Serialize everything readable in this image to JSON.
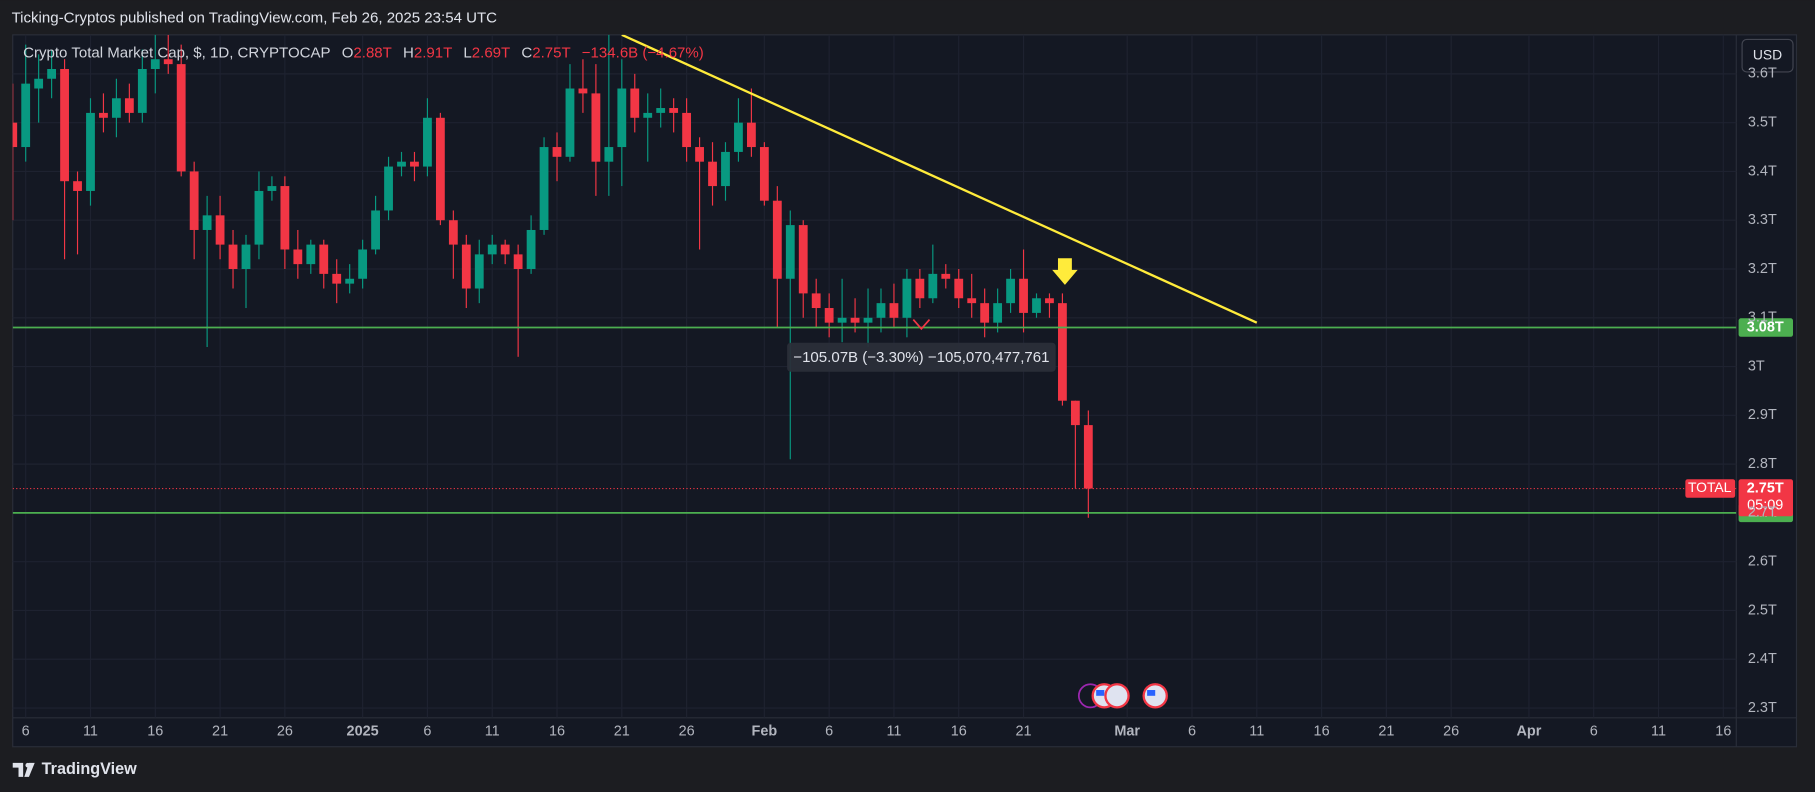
{
  "header": {
    "title": "Ticking-Cryptos published on TradingView.com, Feb 26, 2025 23:54 UTC"
  },
  "footer": {
    "brand": "TradingView"
  },
  "toolbar": {
    "currency": "USD"
  },
  "chart_data": {
    "type": "candlestick",
    "legend": {
      "title": "Crypto Total Market Cap, $, 1D, CRYPTOCAP",
      "o_key": "O",
      "o": "2.88T",
      "h_key": "H",
      "h": "2.91T",
      "l_key": "L",
      "l": "2.69T",
      "c_key": "C",
      "c": "2.75T",
      "change": "−134.6B (−4.67%)"
    },
    "x": [
      "2024-12-05",
      "2024-12-06",
      "2024-12-07",
      "2024-12-08",
      "2024-12-09",
      "2024-12-10",
      "2024-12-11",
      "2024-12-12",
      "2024-12-13",
      "2024-12-14",
      "2024-12-15",
      "2024-12-16",
      "2024-12-17",
      "2024-12-18",
      "2024-12-19",
      "2024-12-20",
      "2024-12-21",
      "2024-12-22",
      "2024-12-23",
      "2024-12-24",
      "2024-12-25",
      "2024-12-26",
      "2024-12-27",
      "2024-12-28",
      "2024-12-29",
      "2024-12-30",
      "2024-12-31",
      "2025-01-01",
      "2025-01-02",
      "2025-01-03",
      "2025-01-04",
      "2025-01-05",
      "2025-01-06",
      "2025-01-07",
      "2025-01-08",
      "2025-01-09",
      "2025-01-10",
      "2025-01-11",
      "2025-01-12",
      "2025-01-13",
      "2025-01-14",
      "2025-01-15",
      "2025-01-16",
      "2025-01-17",
      "2025-01-18",
      "2025-01-19",
      "2025-01-20",
      "2025-01-21",
      "2025-01-22",
      "2025-01-23",
      "2025-01-24",
      "2025-01-25",
      "2025-01-26",
      "2025-01-27",
      "2025-01-28",
      "2025-01-29",
      "2025-01-30",
      "2025-01-31",
      "2025-02-01",
      "2025-02-02",
      "2025-02-03",
      "2025-02-04",
      "2025-02-05",
      "2025-02-06",
      "2025-02-07",
      "2025-02-08",
      "2025-02-09",
      "2025-02-10",
      "2025-02-11",
      "2025-02-12",
      "2025-02-13",
      "2025-02-14",
      "2025-02-15",
      "2025-02-16",
      "2025-02-17",
      "2025-02-18",
      "2025-02-19",
      "2025-02-20",
      "2025-02-21",
      "2025-02-22",
      "2025-02-23",
      "2025-02-24",
      "2025-02-25",
      "2025-02-26"
    ],
    "open": [
      3.5,
      3.45,
      3.57,
      3.59,
      3.61,
      3.38,
      3.36,
      3.52,
      3.51,
      3.55,
      3.52,
      3.61,
      3.63,
      3.62,
      3.4,
      3.28,
      3.31,
      3.25,
      3.2,
      3.25,
      3.36,
      3.37,
      3.24,
      3.21,
      3.25,
      3.19,
      3.17,
      3.18,
      3.24,
      3.32,
      3.41,
      3.42,
      3.41,
      3.51,
      3.3,
      3.25,
      3.16,
      3.23,
      3.25,
      3.23,
      3.2,
      3.28,
      3.45,
      3.43,
      3.57,
      3.56,
      3.42,
      3.45,
      3.57,
      3.51,
      3.52,
      3.53,
      3.52,
      3.45,
      3.42,
      3.37,
      3.44,
      3.5,
      3.45,
      3.34,
      3.18,
      3.29,
      3.15,
      3.12,
      3.09,
      3.1,
      3.09,
      3.1,
      3.13,
      3.1,
      3.18,
      3.14,
      3.19,
      3.18,
      3.14,
      3.13,
      3.09,
      3.13,
      3.18,
      3.11,
      3.14,
      3.13,
      2.93,
      2.88
    ],
    "high": [
      3.58,
      3.66,
      3.64,
      3.65,
      3.63,
      3.4,
      3.55,
      3.56,
      3.59,
      3.58,
      3.65,
      3.7,
      3.68,
      3.66,
      3.42,
      3.35,
      3.35,
      3.28,
      3.27,
      3.4,
      3.39,
      3.39,
      3.28,
      3.26,
      3.26,
      3.22,
      3.21,
      3.26,
      3.35,
      3.43,
      3.44,
      3.44,
      3.55,
      3.52,
      3.32,
      3.27,
      3.26,
      3.27,
      3.26,
      3.25,
      3.31,
      3.47,
      3.48,
      3.62,
      3.63,
      3.62,
      3.7,
      3.63,
      3.6,
      3.56,
      3.57,
      3.55,
      3.55,
      3.47,
      3.46,
      3.46,
      3.55,
      3.57,
      3.46,
      3.37,
      3.32,
      3.3,
      3.18,
      3.15,
      3.18,
      3.14,
      3.16,
      3.16,
      3.17,
      3.2,
      3.2,
      3.25,
      3.21,
      3.2,
      3.19,
      3.16,
      3.16,
      3.2,
      3.24,
      3.15,
      3.15,
      3.15,
      2.93,
      2.91
    ],
    "low": [
      3.3,
      3.42,
      3.5,
      3.55,
      3.22,
      3.23,
      3.33,
      3.48,
      3.47,
      3.5,
      3.5,
      3.56,
      3.6,
      3.39,
      3.22,
      3.04,
      3.22,
      3.16,
      3.12,
      3.22,
      3.34,
      3.2,
      3.18,
      3.19,
      3.16,
      3.13,
      3.15,
      3.16,
      3.23,
      3.3,
      3.39,
      3.38,
      3.39,
      3.29,
      3.18,
      3.12,
      3.13,
      3.21,
      3.21,
      3.02,
      3.19,
      3.27,
      3.38,
      3.42,
      3.52,
      3.35,
      3.35,
      3.37,
      3.48,
      3.42,
      3.49,
      3.48,
      3.42,
      3.24,
      3.33,
      3.34,
      3.42,
      3.43,
      3.33,
      3.08,
      2.81,
      3.1,
      3.08,
      3.06,
      3.05,
      3.07,
      3.04,
      3.07,
      3.08,
      3.06,
      3.12,
      3.13,
      3.16,
      3.12,
      3.1,
      3.06,
      3.07,
      3.11,
      3.07,
      3.1,
      3.1,
      2.92,
      2.75,
      2.69
    ],
    "close": [
      3.45,
      3.58,
      3.59,
      3.61,
      3.38,
      3.36,
      3.52,
      3.51,
      3.55,
      3.52,
      3.61,
      3.63,
      3.62,
      3.4,
      3.28,
      3.31,
      3.25,
      3.2,
      3.25,
      3.36,
      3.37,
      3.24,
      3.21,
      3.25,
      3.19,
      3.17,
      3.18,
      3.24,
      3.32,
      3.41,
      3.42,
      3.41,
      3.51,
      3.3,
      3.25,
      3.16,
      3.23,
      3.25,
      3.23,
      3.2,
      3.28,
      3.45,
      3.43,
      3.57,
      3.56,
      3.42,
      3.45,
      3.57,
      3.51,
      3.52,
      3.53,
      3.52,
      3.45,
      3.42,
      3.37,
      3.44,
      3.5,
      3.45,
      3.34,
      3.18,
      3.29,
      3.15,
      3.12,
      3.09,
      3.1,
      3.09,
      3.1,
      3.13,
      3.1,
      3.18,
      3.14,
      3.19,
      3.18,
      3.14,
      3.13,
      3.09,
      3.13,
      3.18,
      3.11,
      3.14,
      3.13,
      2.93,
      2.88,
      2.75
    ],
    "up_color": "#089981",
    "down_color": "#f23645",
    "xlim": [
      "2024-12-05",
      "2025-04-17"
    ],
    "xticks": [
      {
        "value": "2024-12-06",
        "label": "6"
      },
      {
        "value": "2024-12-11",
        "label": "11"
      },
      {
        "value": "2024-12-16",
        "label": "16"
      },
      {
        "value": "2024-12-21",
        "label": "21"
      },
      {
        "value": "2024-12-26",
        "label": "26"
      },
      {
        "value": "2025-01-01",
        "label": "2025"
      },
      {
        "value": "2025-01-06",
        "label": "6"
      },
      {
        "value": "2025-01-11",
        "label": "11"
      },
      {
        "value": "2025-01-16",
        "label": "16"
      },
      {
        "value": "2025-01-21",
        "label": "21"
      },
      {
        "value": "2025-01-26",
        "label": "26"
      },
      {
        "value": "2025-02-01",
        "label": "Feb"
      },
      {
        "value": "2025-02-06",
        "label": "6"
      },
      {
        "value": "2025-02-11",
        "label": "11"
      },
      {
        "value": "2025-02-16",
        "label": "16"
      },
      {
        "value": "2025-02-21",
        "label": "21"
      },
      {
        "value": "2025-03-01",
        "label": "Mar"
      },
      {
        "value": "2025-03-06",
        "label": "6"
      },
      {
        "value": "2025-03-11",
        "label": "11"
      },
      {
        "value": "2025-03-16",
        "label": "16"
      },
      {
        "value": "2025-03-21",
        "label": "21"
      },
      {
        "value": "2025-03-26",
        "label": "26"
      },
      {
        "value": "2025-04-01",
        "label": "Apr"
      },
      {
        "value": "2025-04-06",
        "label": "6"
      },
      {
        "value": "2025-04-11",
        "label": "11"
      },
      {
        "value": "2025-04-16",
        "label": "16"
      }
    ],
    "ylim": [
      2.28,
      3.68
    ],
    "yticks": [
      {
        "value": 2.3,
        "label": "2.3T"
      },
      {
        "value": 2.4,
        "label": "2.4T"
      },
      {
        "value": 2.5,
        "label": "2.5T"
      },
      {
        "value": 2.6,
        "label": "2.6T"
      },
      {
        "value": 2.7,
        "label": "2.7T"
      },
      {
        "value": 2.8,
        "label": "2.8T"
      },
      {
        "value": 2.9,
        "label": "2.9T"
      },
      {
        "value": 3,
        "label": "3T"
      },
      {
        "value": 3.1,
        "label": "3.1T"
      },
      {
        "value": 3.2,
        "label": "3.2T"
      },
      {
        "value": 3.3,
        "label": "3.3T"
      },
      {
        "value": 3.4,
        "label": "3.4T"
      },
      {
        "value": 3.5,
        "label": "3.5T"
      },
      {
        "value": 3.6,
        "label": "3.6T"
      }
    ],
    "grid": true,
    "trendline": {
      "x": [
        "2025-01-21",
        "2025-03-11"
      ],
      "values": [
        3.68,
        3.09
      ],
      "color": "#ffeb3b"
    },
    "levels": [
      {
        "value": 3.08,
        "label": "3.08T"
      },
      {
        "value": 2.7,
        "label": "2.7T"
      }
    ],
    "level_color": "#4caf50",
    "last_price": {
      "symbol": "TOTAL",
      "value": 2.75,
      "label": "2.75T",
      "countdown": "05:09"
    },
    "measure": {
      "text": "−105.07B (−3.30%) −105,070,477,761"
    }
  }
}
